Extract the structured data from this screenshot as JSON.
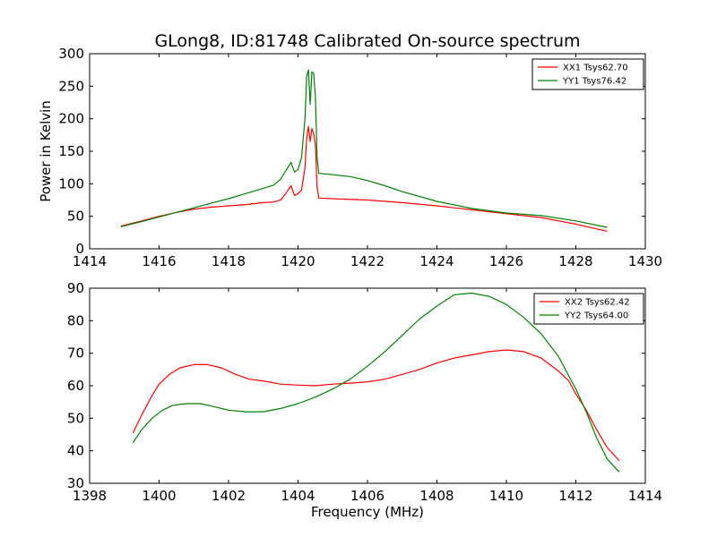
{
  "title": "GLong8, ID:81748 Calibrated On-source spectrum",
  "colors": {
    "red": "#ff0000",
    "green": "#008000"
  },
  "chart_data": [
    {
      "type": "line",
      "title": "GLong8, ID:81748 Calibrated On-source spectrum",
      "xlabel": "",
      "ylabel": "Power in Kelvin",
      "xlim": [
        1414,
        1430
      ],
      "ylim": [
        0,
        300
      ],
      "xticks": [
        "1414",
        "1416",
        "1418",
        "1420",
        "1422",
        "1424",
        "1426",
        "1428",
        "1430"
      ],
      "yticks": [
        "0",
        "50",
        "100",
        "150",
        "200",
        "250",
        "300"
      ],
      "legend_position": "top-right",
      "grid": false,
      "series": [
        {
          "name": "XX1 Tsys62.70",
          "color": "#ff0000",
          "points": [
            [
              1414.9,
              35
            ],
            [
              1415.5,
              43
            ],
            [
              1416.0,
              50
            ],
            [
              1416.5,
              56
            ],
            [
              1417.0,
              61
            ],
            [
              1417.5,
              64
            ],
            [
              1418.0,
              66
            ],
            [
              1418.5,
              68
            ],
            [
              1419.0,
              71
            ],
            [
              1419.3,
              72
            ],
            [
              1419.5,
              75
            ],
            [
              1419.65,
              85
            ],
            [
              1419.8,
              97
            ],
            [
              1419.9,
              82
            ],
            [
              1420.0,
              85
            ],
            [
              1420.1,
              90
            ],
            [
              1420.2,
              125
            ],
            [
              1420.25,
              170
            ],
            [
              1420.3,
              188
            ],
            [
              1420.35,
              165
            ],
            [
              1420.4,
              185
            ],
            [
              1420.45,
              178
            ],
            [
              1420.5,
              160
            ],
            [
              1420.55,
              95
            ],
            [
              1420.6,
              78
            ],
            [
              1421.0,
              77
            ],
            [
              1422.0,
              75
            ],
            [
              1423.0,
              71
            ],
            [
              1424.0,
              66
            ],
            [
              1425.0,
              60
            ],
            [
              1426.0,
              54
            ],
            [
              1427.0,
              48
            ],
            [
              1428.0,
              38
            ],
            [
              1428.9,
              27
            ]
          ]
        },
        {
          "name": "YY1 Tsys76.42",
          "color": "#008000",
          "points": [
            [
              1414.9,
              34
            ],
            [
              1415.5,
              42
            ],
            [
              1416.0,
              49
            ],
            [
              1416.5,
              56
            ],
            [
              1417.0,
              63
            ],
            [
              1417.5,
              70
            ],
            [
              1418.0,
              77
            ],
            [
              1418.5,
              85
            ],
            [
              1419.0,
              93
            ],
            [
              1419.3,
              98
            ],
            [
              1419.5,
              107
            ],
            [
              1419.65,
              120
            ],
            [
              1419.8,
              133
            ],
            [
              1419.9,
              118
            ],
            [
              1420.0,
              122
            ],
            [
              1420.1,
              140
            ],
            [
              1420.2,
              200
            ],
            [
              1420.25,
              265
            ],
            [
              1420.3,
              275
            ],
            [
              1420.35,
              222
            ],
            [
              1420.4,
              272
            ],
            [
              1420.45,
              270
            ],
            [
              1420.5,
              235
            ],
            [
              1420.55,
              140
            ],
            [
              1420.6,
              116
            ],
            [
              1421.0,
              114
            ],
            [
              1421.5,
              111
            ],
            [
              1422.0,
              105
            ],
            [
              1422.5,
              97
            ],
            [
              1423.0,
              88
            ],
            [
              1424.0,
              73
            ],
            [
              1425.0,
              62
            ],
            [
              1426.0,
              55
            ],
            [
              1427.0,
              51
            ],
            [
              1428.0,
              43
            ],
            [
              1428.9,
              33
            ]
          ]
        }
      ]
    },
    {
      "type": "line",
      "title": "",
      "xlabel": "Frequency (MHz)",
      "ylabel": "",
      "xlim": [
        1398,
        1414
      ],
      "ylim": [
        30,
        90
      ],
      "xticks": [
        "1398",
        "1400",
        "1402",
        "1404",
        "1406",
        "1408",
        "1410",
        "1412",
        "1414"
      ],
      "yticks": [
        "30",
        "40",
        "50",
        "60",
        "70",
        "80",
        "90"
      ],
      "legend_position": "top-right",
      "grid": false,
      "series": [
        {
          "name": "XX2 Tsys62.42",
          "color": "#ff0000",
          "points": [
            [
              1399.25,
              45.5
            ],
            [
              1399.5,
              51
            ],
            [
              1399.8,
              57
            ],
            [
              1400.0,
              60.5
            ],
            [
              1400.3,
              63.5
            ],
            [
              1400.6,
              65.5
            ],
            [
              1401.0,
              66.5
            ],
            [
              1401.4,
              66.5
            ],
            [
              1401.8,
              65.5
            ],
            [
              1402.2,
              63.5
            ],
            [
              1402.6,
              62
            ],
            [
              1403.0,
              61.5
            ],
            [
              1403.5,
              60.5
            ],
            [
              1404.0,
              60.2
            ],
            [
              1404.5,
              60
            ],
            [
              1405.0,
              60.5
            ],
            [
              1405.5,
              60.8
            ],
            [
              1406.0,
              61.2
            ],
            [
              1406.5,
              62
            ],
            [
              1407.0,
              63.5
            ],
            [
              1407.5,
              65
            ],
            [
              1408.0,
              67
            ],
            [
              1408.5,
              68.5
            ],
            [
              1409.0,
              69.5
            ],
            [
              1409.5,
              70.5
            ],
            [
              1410.0,
              71
            ],
            [
              1410.5,
              70.5
            ],
            [
              1411.0,
              68.5
            ],
            [
              1411.5,
              64.5
            ],
            [
              1411.8,
              61.5
            ],
            [
              1412.0,
              57.5
            ],
            [
              1412.3,
              52.5
            ],
            [
              1412.6,
              46.5
            ],
            [
              1412.9,
              41
            ],
            [
              1413.25,
              37
            ]
          ]
        },
        {
          "name": "YY2 Tsys64.00",
          "color": "#008000",
          "points": [
            [
              1399.25,
              42.5
            ],
            [
              1399.5,
              46.5
            ],
            [
              1399.8,
              50
            ],
            [
              1400.1,
              52.5
            ],
            [
              1400.4,
              54
            ],
            [
              1400.8,
              54.5
            ],
            [
              1401.2,
              54.5
            ],
            [
              1401.6,
              53.5
            ],
            [
              1402.0,
              52.5
            ],
            [
              1402.5,
              52
            ],
            [
              1403.0,
              52
            ],
            [
              1403.5,
              53
            ],
            [
              1404.0,
              54.5
            ],
            [
              1404.5,
              56.5
            ],
            [
              1405.0,
              59
            ],
            [
              1405.5,
              62
            ],
            [
              1406.0,
              66
            ],
            [
              1406.5,
              70.5
            ],
            [
              1407.0,
              75.5
            ],
            [
              1407.5,
              80.5
            ],
            [
              1408.0,
              84.5
            ],
            [
              1408.5,
              88
            ],
            [
              1409.0,
              88.5
            ],
            [
              1409.5,
              87.5
            ],
            [
              1410.0,
              85
            ],
            [
              1410.5,
              81
            ],
            [
              1411.0,
              76
            ],
            [
              1411.5,
              69
            ],
            [
              1411.8,
              63
            ],
            [
              1412.0,
              59
            ],
            [
              1412.3,
              52
            ],
            [
              1412.6,
              44
            ],
            [
              1412.9,
              37.5
            ],
            [
              1413.25,
              33.5
            ]
          ]
        }
      ]
    }
  ]
}
